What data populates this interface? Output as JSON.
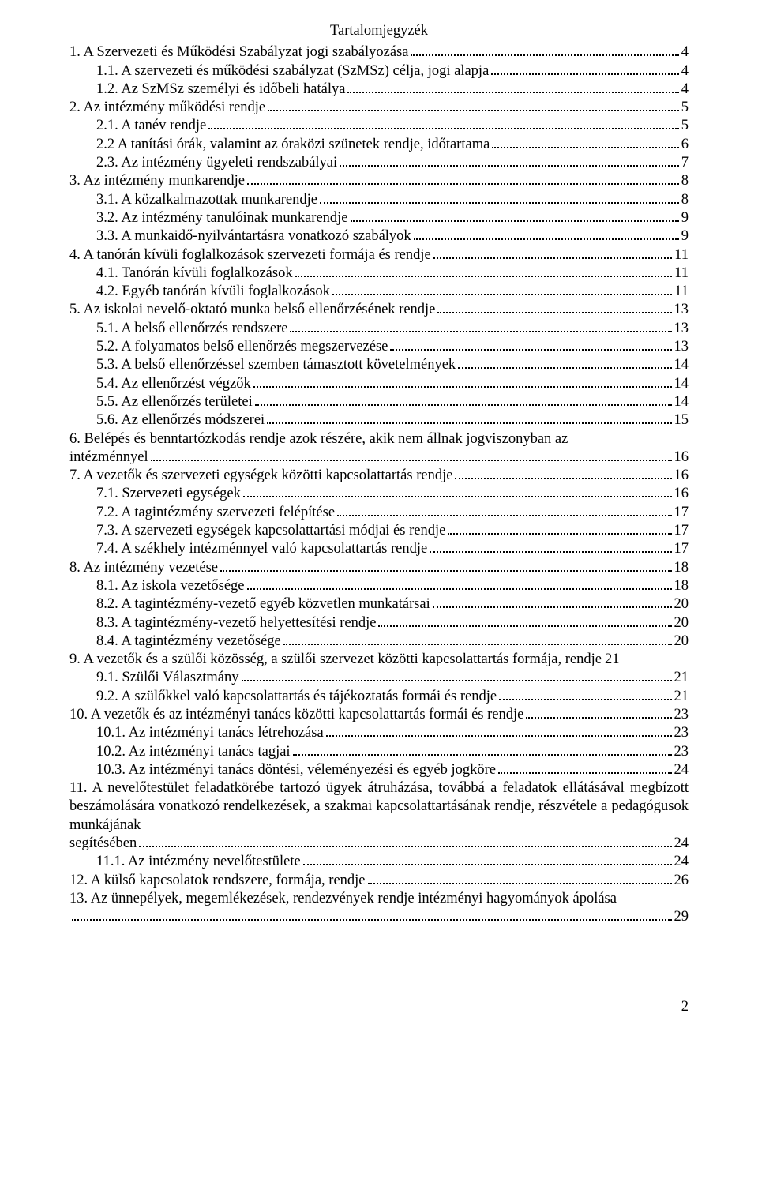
{
  "title": "Tartalomjegyzék",
  "footer_page": "2",
  "font_family": "Times New Roman",
  "text_color": "#000000",
  "background_color": "#ffffff",
  "entries": [
    {
      "text": "1. A Szervezeti és Működési Szabályzat jogi szabályozása",
      "page": "4",
      "indent": 0
    },
    {
      "text": "1.1.   A szervezeti és működési szabályzat (SzMSz) célja, jogi alapja",
      "page": "4",
      "indent": 1
    },
    {
      "text": "1.2.   Az SzMSz személyi és időbeli hatálya",
      "page": "4",
      "indent": 1
    },
    {
      "text": "2. Az intézmény működési rendje",
      "page": "5",
      "indent": 0
    },
    {
      "text": "2.1.   A tanév rendje",
      "page": "5",
      "indent": 1
    },
    {
      "text": "2.2   A tanítási órák, valamint az óraközi szünetek rendje, időtartama",
      "page": "6",
      "indent": 1
    },
    {
      "text": "2.3.   Az intézmény ügyeleti rendszabályai",
      "page": "7",
      "indent": 1
    },
    {
      "text": "3. Az intézmény munkarendje",
      "page": "8",
      "indent": 0
    },
    {
      "text": "3.1.   A közalkalmazottak munkarendje",
      "page": "8",
      "indent": 1
    },
    {
      "text": "3.2.   Az intézmény tanulóinak munkarendje",
      "page": "9",
      "indent": 1
    },
    {
      "text": "3.3.   A munkaidő-nyilvántartásra vonatkozó szabályok",
      "page": "9",
      "indent": 1
    },
    {
      "text": "4. A tanórán kívüli foglalkozások szervezeti formája és rendje",
      "page": "11",
      "indent": 0
    },
    {
      "text": "4.1.   Tanórán kívüli foglalkozások",
      "page": "11",
      "indent": 1
    },
    {
      "text": "4.2.   Egyéb tanórán kívüli foglalkozások",
      "page": "11",
      "indent": 1
    },
    {
      "text": "5. Az iskolai nevelő-oktató munka belső ellenőrzésének rendje",
      "page": "13",
      "indent": 0
    },
    {
      "text": "5.1.   A belső ellenőrzés rendszere",
      "page": "13",
      "indent": 1
    },
    {
      "text": "5.2.   A folyamatos belső ellenőrzés megszervezése",
      "page": "13",
      "indent": 1
    },
    {
      "text": "5.3.   A belső ellenőrzéssel szemben támasztott követelmények",
      "page": "14",
      "indent": 1
    },
    {
      "text": "5.4.   Az ellenőrzést végzők",
      "page": "14",
      "indent": 1
    },
    {
      "text": "5.5.   Az ellenőrzés területei",
      "page": "14",
      "indent": 1
    },
    {
      "text": "5.6.   Az ellenőrzés módszerei",
      "page": "15",
      "indent": 1
    },
    {
      "text": "6. Belépés és benntartózkodás rendje azok részére, akik nem állnak jogviszonyban az intézménnyel",
      "page": "16",
      "indent": 0,
      "wrap": true
    },
    {
      "text": "7. A vezetők és szervezeti egységek közötti kapcsolattartás rendje",
      "page": "16",
      "indent": 0
    },
    {
      "text": "7.1.   Szervezeti egységek",
      "page": "16",
      "indent": 1
    },
    {
      "text": "7.2.   A tagintézmény szervezeti felépítése",
      "page": "17",
      "indent": 1
    },
    {
      "text": "7.3.   A szervezeti egységek kapcsolattartási módjai és rendje",
      "page": "17",
      "indent": 1
    },
    {
      "text": "7.4.   A székhely intézménnyel való kapcsolattartás rendje",
      "page": "17",
      "indent": 1
    },
    {
      "text": "8. Az intézmény vezetése",
      "page": "18",
      "indent": 0
    },
    {
      "text": "8.1.   Az iskola vezetősége",
      "page": "18",
      "indent": 1
    },
    {
      "text": "8.2.   A tagintézmény-vezető egyéb közvetlen munkatársai",
      "page": "20",
      "indent": 1
    },
    {
      "text": "8.3.   A tagintézmény-vezető helyettesítési rendje",
      "page": "20",
      "indent": 1
    },
    {
      "text": "8.4.   A tagintézmény vezetősége",
      "page": "20",
      "indent": 1
    },
    {
      "text": "9. A vezetők és a szülői közösség, a szülői szervezet közötti kapcsolattartás formája, rendje",
      "page": "21",
      "indent": 0,
      "tight": true
    },
    {
      "text": "9.1.   Szülői Választmány",
      "page": "21",
      "indent": 1
    },
    {
      "text": "9.2.   A szülőkkel való kapcsolattartás és tájékoztatás formái és rendje",
      "page": "21",
      "indent": 1
    },
    {
      "text": "10. A vezetők és az intézményi tanács közötti kapcsolattartás formái és rendje",
      "page": "23",
      "indent": 0
    },
    {
      "text": "10.1.   Az intézményi tanács létrehozása",
      "page": "23",
      "indent": 1
    },
    {
      "text": "10.2.   Az intézményi tanács tagjai",
      "page": "23",
      "indent": 1
    },
    {
      "text": "10.3.   Az intézményi tanács döntési, véleményezési és egyéb jogköre",
      "page": "24",
      "indent": 1
    },
    {
      "text": "11. A nevelőtestület feladatkörébe tartozó ügyek átruházása, továbbá a feladatok ellátásával megbízott beszámolására vonatkozó rendelkezések, a szakmai kapcsolattartásának rendje, részvétele a pedagógusok munkájának segítésében",
      "page": "24",
      "indent": 0,
      "wrap": true
    },
    {
      "text": "11.1.   Az intézmény nevelőtestülete",
      "page": "24",
      "indent": 1
    },
    {
      "text": "12. A külső kapcsolatok rendszere, formája, rendje",
      "page": "26",
      "indent": 0
    },
    {
      "text": "13. Az ünnepélyek, megemlékezések, rendezvények rendje intézményi hagyományok ápolása",
      "page": "29",
      "indent": 0,
      "wrap": true,
      "dotsOnly": true
    }
  ]
}
